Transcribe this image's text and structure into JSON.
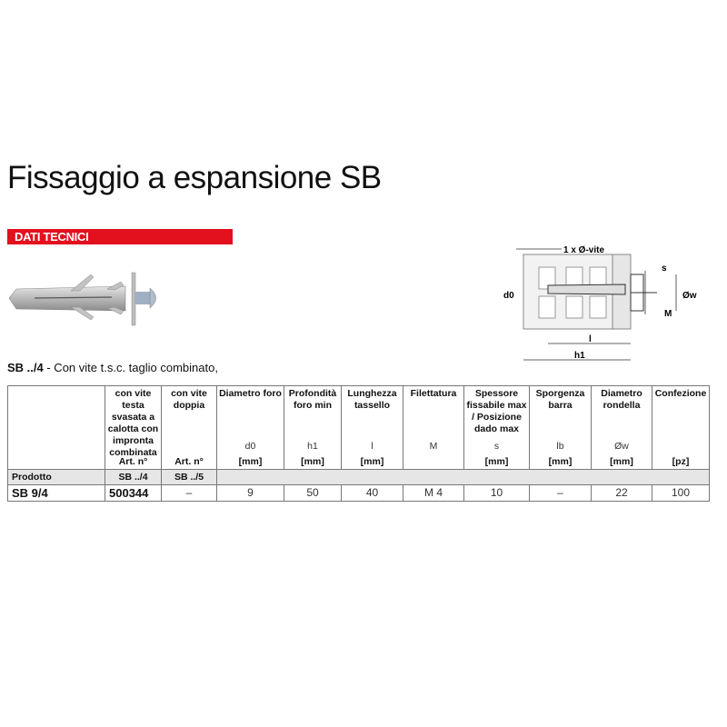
{
  "title": "Fissaggio a espansione SB",
  "section_label": "DATI TECNICI",
  "accent_color": "#e3101e",
  "subtitle": {
    "code": "SB ../4",
    "text": " - Con vite t.s.c. taglio combinato,"
  },
  "diagram": {
    "labels": {
      "top": "1 x Ø-vite",
      "d0": "d0",
      "s": "s",
      "ow": "Øw",
      "M": "M",
      "l": "l",
      "h1": "h1"
    }
  },
  "table": {
    "columns": [
      {
        "header": "",
        "symbol": "",
        "unit": ""
      },
      {
        "header": "con vite testa svasata a calotta con impronta combinata",
        "symbol": "",
        "unit": "Art. n°"
      },
      {
        "header": "con vite doppia",
        "symbol": "",
        "unit": "Art. n°"
      },
      {
        "header": "Diametro foro",
        "symbol": "d0",
        "unit": "[mm]"
      },
      {
        "header": "Profondità foro min",
        "symbol": "h1",
        "unit": "[mm]"
      },
      {
        "header": "Lunghezza tassello",
        "symbol": "l",
        "unit": "[mm]"
      },
      {
        "header": "Filettatura",
        "symbol": "M",
        "unit": ""
      },
      {
        "header": "Spessore fissabile max / Posizione dado max",
        "symbol": "s",
        "unit": "[mm]"
      },
      {
        "header": "Sporgenza barra",
        "symbol": "lb",
        "unit": "[mm]"
      },
      {
        "header": "Diametro rondella",
        "symbol": "Øw",
        "unit": "[mm]"
      },
      {
        "header": "Confezione",
        "symbol": "",
        "unit": "[pz]"
      }
    ],
    "product_row": [
      "Prodotto",
      "SB ../4",
      "SB ../5"
    ],
    "rows": [
      [
        "SB 9/4",
        "500344",
        "–",
        "9",
        "50",
        "40",
        "M 4",
        "10",
        "–",
        "22",
        "100"
      ]
    ]
  }
}
